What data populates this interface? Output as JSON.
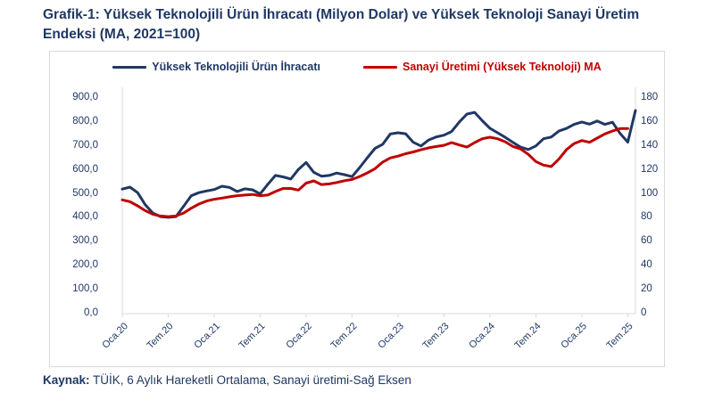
{
  "title": {
    "line1": "Grafik-1: Yüksek Teknolojili Ürün İhracatı (Milyon Dolar) ve Yüksek Teknoloji Sanayi Üretim",
    "line2": "Endeksi (MA, 2021=100)"
  },
  "footer": {
    "label": "Kaynak:",
    "text": " TÜİK, 6 Aylık Hareketli Ortalama, Sanayi üretimi-Sağ Eksen"
  },
  "colors": {
    "text_navy": "#1F3864",
    "exports_line": "#1F3864",
    "production_line": "#C00000",
    "axis_gray": "#D9D9D9"
  },
  "legend": {
    "items": [
      {
        "label": "Yüksek Teknolojili Ürün İhracatı",
        "color": "#1F3864"
      },
      {
        "label": "Sanayi Üretimi (Yüksek Teknoloji) MA",
        "color": "#C00000"
      }
    ]
  },
  "chart_data": {
    "type": "line",
    "title": "Grafik-1: Yüksek Teknolojili Ürün İhracatı (Milyon Dolar) ve Yüksek Teknoloji Sanayi Üretim Endeksi (MA, 2021=100)",
    "x_tick_labels": [
      "Oca.20",
      "Tem.20",
      "Oca.21",
      "Tem.21",
      "Oca.22",
      "Tem.22",
      "Oca.23",
      "Tem.23",
      "Oca.24",
      "Tem.24",
      "Oca.25",
      "Tem.25"
    ],
    "x_months_per_tick": 6,
    "left_axis": {
      "min": 0,
      "max": 900,
      "step": 100,
      "labels": [
        "900,0",
        "800,0",
        "700,0",
        "600,0",
        "500,0",
        "400,0",
        "300,0",
        "200,0",
        "100,0",
        "0,0"
      ]
    },
    "right_axis": {
      "min": 0,
      "max": 180,
      "step": 20,
      "labels": [
        "180",
        "160",
        "140",
        "120",
        "100",
        "80",
        "60",
        "40",
        "20",
        "0"
      ]
    },
    "grid": false,
    "legend_position": "top",
    "series": [
      {
        "name": "Yüksek Teknolojili Ürün İhracatı",
        "axis": "left",
        "color": "#1F3864",
        "start": "Oca.20",
        "values": [
          520,
          528,
          505,
          455,
          420,
          405,
          402,
          405,
          448,
          492,
          505,
          512,
          518,
          532,
          527,
          510,
          521,
          517,
          500,
          540,
          577,
          571,
          562,
          602,
          631,
          590,
          574,
          577,
          587,
          580,
          572,
          610,
          651,
          690,
          707,
          750,
          755,
          751,
          715,
          700,
          725,
          738,
          745,
          760,
          800,
          833,
          840,
          805,
          774,
          755,
          736,
          715,
          695,
          685,
          700,
          730,
          737,
          762,
          773,
          790,
          800,
          791,
          804,
          790,
          799,
          752,
          716,
          848
        ]
      },
      {
        "name": "Sanayi Üretimi (Yüksek Teknoloji) MA",
        "axis": "right",
        "color": "#C00000",
        "start": "Oca.20",
        "values": [
          95,
          93.5,
          90,
          86,
          83,
          81.5,
          81,
          81.5,
          84,
          88,
          91.5,
          94,
          95.5,
          96.5,
          97.5,
          98.5,
          99,
          99.5,
          98.5,
          99,
          102,
          104.5,
          104.5,
          103.2,
          109,
          110.8,
          107.8,
          108.3,
          109.5,
          111,
          112,
          114.5,
          117.5,
          121,
          126.5,
          130,
          131.5,
          133.5,
          135,
          136.8,
          138.4,
          139.5,
          140.5,
          142.8,
          140.8,
          139,
          142.8,
          146,
          147.3,
          146,
          143.5,
          139.5,
          137.5,
          133,
          127,
          124,
          122.8,
          129,
          137,
          142,
          144.5,
          143,
          146.5,
          150,
          152.5,
          154.5,
          154.5
        ]
      }
    ]
  }
}
